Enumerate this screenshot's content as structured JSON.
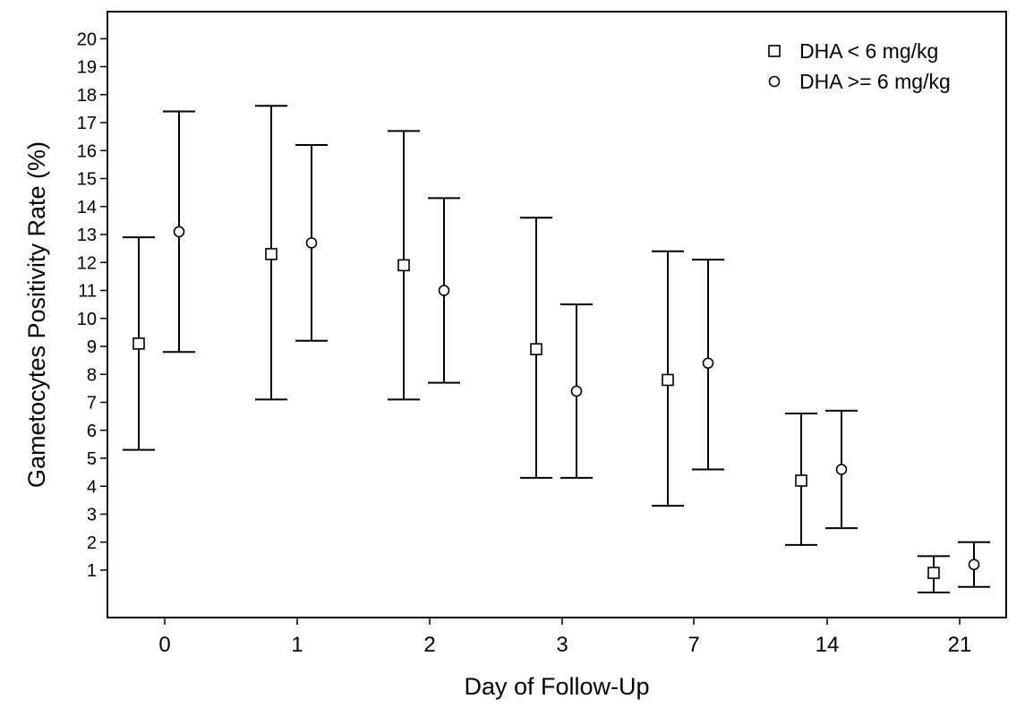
{
  "chart_data": {
    "type": "scatter",
    "title": "",
    "xlabel": "Day of Follow-Up",
    "ylabel": "Gametocytes Positivity Rate (%)",
    "categories": [
      "0",
      "1",
      "2",
      "3",
      "7",
      "14",
      "21"
    ],
    "yticks": [
      1,
      2,
      3,
      4,
      5,
      6,
      7,
      8,
      9,
      10,
      11,
      12,
      13,
      14,
      15,
      16,
      17,
      18,
      19,
      20
    ],
    "ylim": [
      -0.8,
      21
    ],
    "grid": false,
    "legend_position": "top-right",
    "series": [
      {
        "name": "DHA < 6 mg/kg",
        "marker": "square",
        "values": [
          9.1,
          12.3,
          11.9,
          8.9,
          7.8,
          4.2,
          0.9
        ],
        "lower": [
          5.3,
          7.1,
          7.1,
          4.3,
          3.3,
          1.9,
          0.2
        ],
        "upper": [
          12.9,
          17.6,
          16.7,
          13.6,
          12.4,
          6.6,
          1.5
        ]
      },
      {
        "name": "DHA >= 6 mg/kg",
        "marker": "circle",
        "values": [
          13.1,
          12.7,
          11.0,
          7.4,
          8.4,
          4.6,
          1.2
        ],
        "lower": [
          8.8,
          9.2,
          7.7,
          4.3,
          4.6,
          2.5,
          0.4
        ],
        "upper": [
          17.4,
          16.2,
          14.3,
          10.5,
          12.1,
          6.7,
          2.0
        ]
      }
    ]
  }
}
